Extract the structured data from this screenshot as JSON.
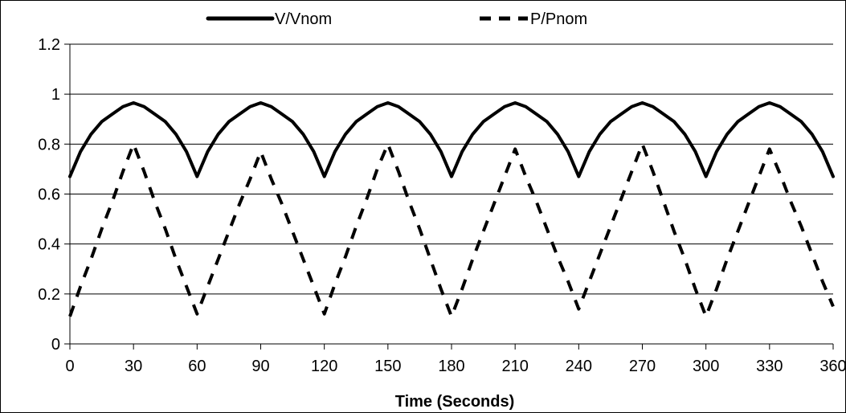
{
  "chart_data": {
    "type": "line",
    "title": "",
    "xlabel": "Time (Seconds)",
    "ylabel": "",
    "xlim": [
      0,
      360
    ],
    "ylim": [
      0,
      1.2
    ],
    "x_ticks": [
      0,
      30,
      60,
      90,
      120,
      150,
      180,
      210,
      240,
      270,
      300,
      330,
      360
    ],
    "x_tick_labels": [
      "0",
      "30",
      "60",
      "90",
      "120",
      "150",
      "180",
      "210",
      "240",
      "270",
      "300",
      "330",
      "360"
    ],
    "y_ticks": [
      0,
      0.2,
      0.4,
      0.6,
      0.8,
      1.0,
      1.2
    ],
    "y_tick_labels": [
      "0",
      "0.2",
      "0.4",
      "0.6",
      "0.8",
      "1",
      "1.2"
    ],
    "grid": "horizontal",
    "legend_position": "top",
    "x": [
      0,
      5,
      10,
      15,
      20,
      25,
      30,
      35,
      40,
      45,
      50,
      55,
      60,
      65,
      70,
      75,
      80,
      85,
      90,
      95,
      100,
      105,
      110,
      115,
      120,
      125,
      130,
      135,
      140,
      145,
      150,
      155,
      160,
      165,
      170,
      175,
      180,
      185,
      190,
      195,
      200,
      205,
      210,
      215,
      220,
      225,
      230,
      235,
      240,
      245,
      250,
      255,
      260,
      265,
      270,
      275,
      280,
      285,
      290,
      295,
      300,
      305,
      310,
      315,
      320,
      325,
      330,
      335,
      340,
      345,
      350,
      355,
      360
    ],
    "series": [
      {
        "name": "V/Vnom",
        "line_style": "solid",
        "color": "#000000",
        "values": [
          0.67,
          0.77,
          0.84,
          0.89,
          0.92,
          0.95,
          0.965,
          0.95,
          0.92,
          0.89,
          0.84,
          0.77,
          0.67,
          0.77,
          0.84,
          0.89,
          0.92,
          0.95,
          0.965,
          0.95,
          0.92,
          0.89,
          0.84,
          0.77,
          0.67,
          0.77,
          0.84,
          0.89,
          0.92,
          0.95,
          0.965,
          0.95,
          0.92,
          0.89,
          0.84,
          0.77,
          0.67,
          0.77,
          0.84,
          0.89,
          0.92,
          0.95,
          0.965,
          0.95,
          0.92,
          0.89,
          0.84,
          0.77,
          0.67,
          0.77,
          0.84,
          0.89,
          0.92,
          0.95,
          0.965,
          0.95,
          0.92,
          0.89,
          0.84,
          0.77,
          0.67,
          0.77,
          0.84,
          0.89,
          0.92,
          0.95,
          0.965,
          0.95,
          0.92,
          0.89,
          0.84,
          0.77,
          0.67
        ]
      },
      {
        "name": "P/Pnom",
        "line_style": "dashed",
        "color": "#000000",
        "values": [
          0.11,
          0.23,
          0.34,
          0.46,
          0.57,
          0.69,
          0.8,
          0.69,
          0.57,
          0.46,
          0.34,
          0.23,
          0.12,
          0.23,
          0.34,
          0.45,
          0.56,
          0.66,
          0.77,
          0.66,
          0.56,
          0.45,
          0.34,
          0.23,
          0.12,
          0.24,
          0.35,
          0.47,
          0.58,
          0.7,
          0.8,
          0.69,
          0.57,
          0.46,
          0.34,
          0.22,
          0.11,
          0.22,
          0.34,
          0.45,
          0.56,
          0.67,
          0.78,
          0.67,
          0.57,
          0.46,
          0.35,
          0.25,
          0.14,
          0.25,
          0.36,
          0.47,
          0.58,
          0.69,
          0.8,
          0.69,
          0.57,
          0.45,
          0.34,
          0.22,
          0.11,
          0.22,
          0.34,
          0.45,
          0.56,
          0.67,
          0.78,
          0.68,
          0.57,
          0.47,
          0.36,
          0.25,
          0.15
        ]
      }
    ]
  }
}
